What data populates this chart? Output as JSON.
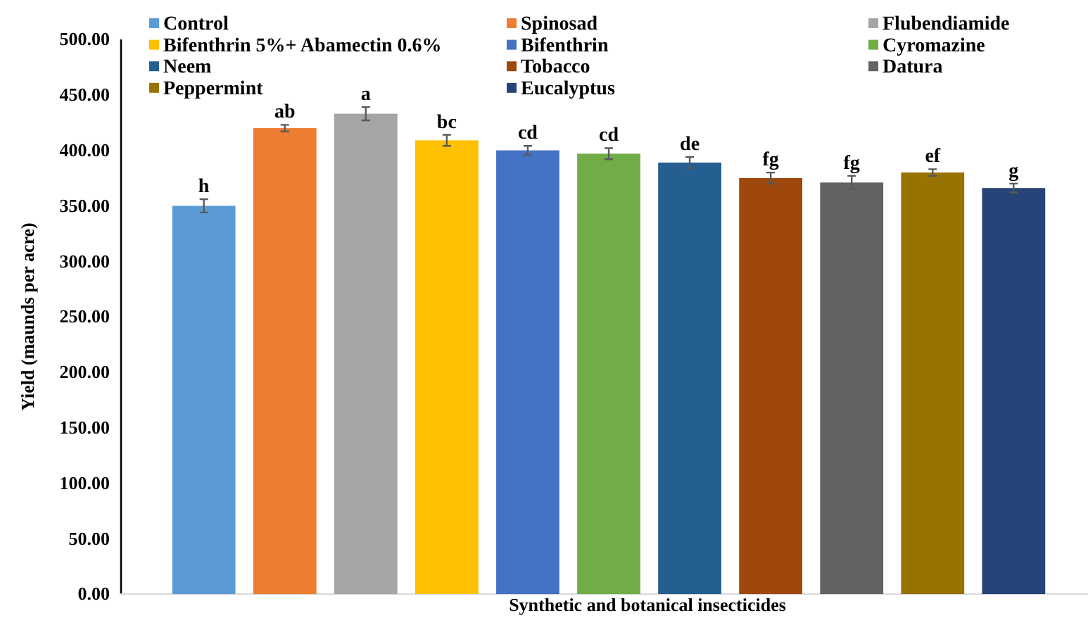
{
  "chart_data": {
    "type": "bar",
    "xlabel": "Synthetic and botanical insecticides",
    "ylabel": "Yield (maunds per acre)",
    "categories": [
      null
    ],
    "series": [
      {
        "name": "Control",
        "color": "#5b9bd5",
        "values": [
          350
        ],
        "errors": [
          6
        ],
        "value_labels": [
          "h"
        ]
      },
      {
        "name": "Spinosad",
        "color": "#ed7d31",
        "values": [
          420
        ],
        "errors": [
          3
        ],
        "value_labels": [
          "ab"
        ]
      },
      {
        "name": "Flubendiamide",
        "color": "#a5a5a5",
        "values": [
          433
        ],
        "errors": [
          6
        ],
        "value_labels": [
          "a"
        ]
      },
      {
        "name": "Bifenthrin 5%+ Abamectin 0.6%",
        "color": "#ffc000",
        "values": [
          409
        ],
        "errors": [
          5
        ],
        "value_labels": [
          "bc"
        ]
      },
      {
        "name": "Bifenthrin",
        "color": "#4472c4",
        "values": [
          400
        ],
        "errors": [
          4
        ],
        "value_labels": [
          "cd"
        ]
      },
      {
        "name": "Cyromazine",
        "color": "#70ad47",
        "values": [
          397
        ],
        "errors": [
          5
        ],
        "value_labels": [
          "cd"
        ]
      },
      {
        "name": "Neem",
        "color": "#255e91",
        "values": [
          389
        ],
        "errors": [
          5
        ],
        "value_labels": [
          "de"
        ]
      },
      {
        "name": "Tobacco",
        "color": "#9e480e",
        "values": [
          375
        ],
        "errors": [
          5
        ],
        "value_labels": [
          "fg"
        ]
      },
      {
        "name": "Datura",
        "color": "#636363",
        "values": [
          371
        ],
        "errors": [
          6
        ],
        "value_labels": [
          "fg"
        ]
      },
      {
        "name": "Peppermint",
        "color": "#997300",
        "values": [
          380
        ],
        "errors": [
          3
        ],
        "value_labels": [
          "ef"
        ]
      },
      {
        "name": "Eucalyptus",
        "color": "#264478",
        "values": [
          366
        ],
        "errors": [
          4
        ],
        "value_labels": [
          "g"
        ]
      }
    ],
    "ylim": [
      0,
      500
    ],
    "yticks": [
      {
        "value": 0,
        "label": "0.00"
      },
      {
        "value": 50,
        "label": "50.00"
      },
      {
        "value": 100,
        "label": "100.00"
      },
      {
        "value": 150,
        "label": "150.00"
      },
      {
        "value": 200,
        "label": "200.00"
      },
      {
        "value": 250,
        "label": "250.00"
      },
      {
        "value": 300,
        "label": "300.00"
      },
      {
        "value": 350,
        "label": "350.00"
      },
      {
        "value": 400,
        "label": "400.00"
      },
      {
        "value": 450,
        "label": "450.00"
      },
      {
        "value": 500,
        "label": "500.00"
      }
    ],
    "tick_labels": "y",
    "legend": "top"
  }
}
